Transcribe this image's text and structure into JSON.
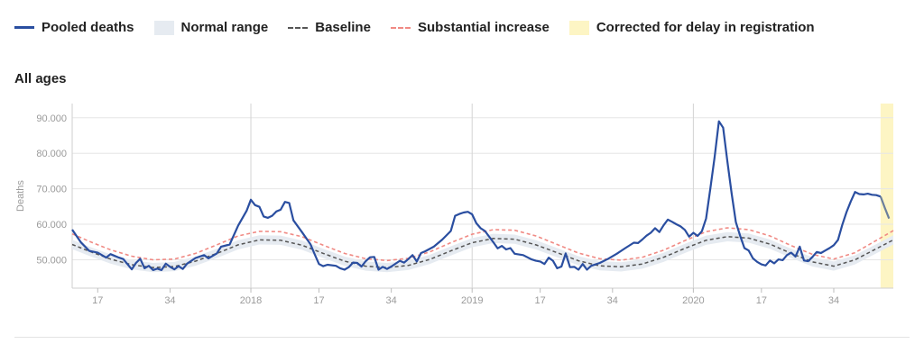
{
  "legend": {
    "pooled": "Pooled deaths",
    "normal": "Normal range",
    "baseline": "Baseline",
    "substantial": "Substantial increase",
    "corrected": "Corrected for delay in registration"
  },
  "subtitle": "All ages",
  "colors": {
    "pooled": "#2a4ea0",
    "normal_band": "#e6ebf1",
    "baseline": "#555555",
    "substantial": "#f08a84",
    "corrected": "#fdf5c4",
    "grid": "#e6e6e6"
  },
  "chart_data": {
    "type": "line",
    "ylabel": "Deaths",
    "ylim": [
      42000,
      94000
    ],
    "yticks": [
      50000,
      60000,
      70000,
      80000,
      90000
    ],
    "ytick_labels": [
      "50.000",
      "60.000",
      "70.000",
      "80.000",
      "90.000"
    ],
    "x_axis": "ISO week, 2017 week 11 to 2020 week 47",
    "xlim": [
      11,
      204
    ],
    "xticks": [
      {
        "x": 17,
        "label": "17"
      },
      {
        "x": 34,
        "label": "34"
      },
      {
        "x": 53,
        "label": "2018"
      },
      {
        "x": 69,
        "label": "17"
      },
      {
        "x": 86,
        "label": "34"
      },
      {
        "x": 105,
        "label": "2019"
      },
      {
        "x": 121,
        "label": "17"
      },
      {
        "x": 138,
        "label": "34"
      },
      {
        "x": 157,
        "label": "2020"
      },
      {
        "x": 173,
        "label": "17"
      },
      {
        "x": 190,
        "label": "34"
      }
    ],
    "year_lines": [
      53,
      105,
      157
    ],
    "corrected_range": [
      201,
      204
    ],
    "series": [
      {
        "key": "pooled",
        "points": [
          [
            11,
            58500
          ],
          [
            13,
            55000
          ],
          [
            15,
            52500
          ],
          [
            17,
            52000
          ],
          [
            19,
            50600
          ],
          [
            20,
            51600
          ],
          [
            22,
            50600
          ],
          [
            23,
            50200
          ],
          [
            25,
            47300
          ],
          [
            26,
            49100
          ],
          [
            27,
            50300
          ],
          [
            28,
            47600
          ],
          [
            29,
            48300
          ],
          [
            30,
            47100
          ],
          [
            31,
            47500
          ],
          [
            32,
            47100
          ],
          [
            33,
            48900
          ],
          [
            34,
            48000
          ],
          [
            35,
            47300
          ],
          [
            36,
            48200
          ],
          [
            37,
            47400
          ],
          [
            38,
            48900
          ],
          [
            40,
            50500
          ],
          [
            42,
            51300
          ],
          [
            43,
            50400
          ],
          [
            45,
            51800
          ],
          [
            46,
            53700
          ],
          [
            48,
            54300
          ],
          [
            50,
            59600
          ],
          [
            52,
            63800
          ],
          [
            53,
            66900
          ],
          [
            54,
            65400
          ],
          [
            55,
            64900
          ],
          [
            56,
            62200
          ],
          [
            57,
            61800
          ],
          [
            58,
            62400
          ],
          [
            59,
            63600
          ],
          [
            60,
            64100
          ],
          [
            61,
            66300
          ],
          [
            62,
            66000
          ],
          [
            63,
            61100
          ],
          [
            65,
            57800
          ],
          [
            67,
            54400
          ],
          [
            68,
            51500
          ],
          [
            69,
            48800
          ],
          [
            70,
            48200
          ],
          [
            71,
            48600
          ],
          [
            73,
            48300
          ],
          [
            74,
            47600
          ],
          [
            75,
            47200
          ],
          [
            76,
            47900
          ],
          [
            77,
            49200
          ],
          [
            78,
            49100
          ],
          [
            79,
            48100
          ],
          [
            80,
            49600
          ],
          [
            81,
            50700
          ],
          [
            82,
            50800
          ],
          [
            83,
            47200
          ],
          [
            84,
            48000
          ],
          [
            85,
            47400
          ],
          [
            86,
            48100
          ],
          [
            88,
            49700
          ],
          [
            89,
            49200
          ],
          [
            90,
            50200
          ],
          [
            91,
            51300
          ],
          [
            92,
            49500
          ],
          [
            93,
            51900
          ],
          [
            94,
            52400
          ],
          [
            96,
            53700
          ],
          [
            98,
            55700
          ],
          [
            100,
            58100
          ],
          [
            101,
            62400
          ],
          [
            102,
            62900
          ],
          [
            103,
            63300
          ],
          [
            104,
            63500
          ],
          [
            105,
            62800
          ],
          [
            106,
            60300
          ],
          [
            107,
            58900
          ],
          [
            108,
            58100
          ],
          [
            110,
            54900
          ],
          [
            111,
            53200
          ],
          [
            112,
            53900
          ],
          [
            113,
            52900
          ],
          [
            114,
            53300
          ],
          [
            115,
            51700
          ],
          [
            117,
            51300
          ],
          [
            119,
            50100
          ],
          [
            120,
            49700
          ],
          [
            121,
            49500
          ],
          [
            122,
            48800
          ],
          [
            123,
            50600
          ],
          [
            124,
            49700
          ],
          [
            125,
            47600
          ],
          [
            126,
            48100
          ],
          [
            127,
            51800
          ],
          [
            128,
            47900
          ],
          [
            129,
            48000
          ],
          [
            130,
            47200
          ],
          [
            131,
            48800
          ],
          [
            132,
            47200
          ],
          [
            133,
            48300
          ],
          [
            135,
            49100
          ],
          [
            137,
            50300
          ],
          [
            139,
            51700
          ],
          [
            141,
            53300
          ],
          [
            143,
            54800
          ],
          [
            144,
            54700
          ],
          [
            145,
            55700
          ],
          [
            146,
            56800
          ],
          [
            147,
            57600
          ],
          [
            148,
            58900
          ],
          [
            149,
            57800
          ],
          [
            150,
            59700
          ],
          [
            151,
            61300
          ],
          [
            152,
            60700
          ],
          [
            153,
            60000
          ],
          [
            154,
            59400
          ],
          [
            155,
            58400
          ],
          [
            156,
            56500
          ],
          [
            157,
            57600
          ],
          [
            158,
            56700
          ],
          [
            159,
            58000
          ],
          [
            160,
            61600
          ],
          [
            161,
            70200
          ],
          [
            162,
            79000
          ],
          [
            163,
            89000
          ],
          [
            164,
            87200
          ],
          [
            165,
            77700
          ],
          [
            166,
            68700
          ],
          [
            167,
            60600
          ],
          [
            168,
            56700
          ],
          [
            169,
            53300
          ],
          [
            170,
            52600
          ],
          [
            171,
            50400
          ],
          [
            172,
            49400
          ],
          [
            173,
            48700
          ],
          [
            174,
            48400
          ],
          [
            175,
            49800
          ],
          [
            176,
            49000
          ],
          [
            177,
            50100
          ],
          [
            178,
            49900
          ],
          [
            179,
            51300
          ],
          [
            180,
            52000
          ],
          [
            181,
            50900
          ],
          [
            182,
            53700
          ],
          [
            183,
            49800
          ],
          [
            184,
            49600
          ],
          [
            185,
            50800
          ],
          [
            186,
            52200
          ],
          [
            187,
            51900
          ],
          [
            188,
            52600
          ],
          [
            189,
            53300
          ],
          [
            190,
            54100
          ],
          [
            191,
            55600
          ],
          [
            192,
            59800
          ],
          [
            193,
            63400
          ],
          [
            194,
            66400
          ],
          [
            195,
            69100
          ],
          [
            196,
            68500
          ],
          [
            197,
            68400
          ],
          [
            198,
            68600
          ],
          [
            199,
            68300
          ],
          [
            200,
            68200
          ],
          [
            201,
            67800
          ],
          [
            202,
            64600
          ],
          [
            203,
            61600
          ]
        ]
      },
      {
        "key": "baseline",
        "points": [
          [
            11,
            54300
          ],
          [
            15,
            52400
          ],
          [
            20,
            50200
          ],
          [
            25,
            48600
          ],
          [
            30,
            47800
          ],
          [
            35,
            48100
          ],
          [
            40,
            49600
          ],
          [
            45,
            51800
          ],
          [
            50,
            54200
          ],
          [
            55,
            55600
          ],
          [
            60,
            55500
          ],
          [
            65,
            54100
          ],
          [
            70,
            51800
          ],
          [
            75,
            49600
          ],
          [
            80,
            48200
          ],
          [
            85,
            47800
          ],
          [
            90,
            48400
          ],
          [
            95,
            50100
          ],
          [
            100,
            52500
          ],
          [
            105,
            54800
          ],
          [
            110,
            56000
          ],
          [
            115,
            55800
          ],
          [
            120,
            54200
          ],
          [
            125,
            52000
          ],
          [
            130,
            49700
          ],
          [
            135,
            48300
          ],
          [
            140,
            48000
          ],
          [
            145,
            48800
          ],
          [
            150,
            50700
          ],
          [
            155,
            53200
          ],
          [
            160,
            55500
          ],
          [
            165,
            56500
          ],
          [
            170,
            56100
          ],
          [
            175,
            54400
          ],
          [
            180,
            51800
          ],
          [
            185,
            49400
          ],
          [
            190,
            48200
          ],
          [
            195,
            50000
          ],
          [
            204,
            55600
          ]
        ]
      },
      {
        "key": "substantial",
        "points": [
          [
            11,
            57300
          ],
          [
            15,
            55200
          ],
          [
            20,
            52800
          ],
          [
            25,
            51000
          ],
          [
            30,
            50000
          ],
          [
            35,
            50200
          ],
          [
            40,
            51800
          ],
          [
            45,
            54200
          ],
          [
            50,
            56700
          ],
          [
            55,
            58000
          ],
          [
            60,
            57900
          ],
          [
            65,
            56500
          ],
          [
            70,
            54100
          ],
          [
            75,
            51800
          ],
          [
            80,
            50300
          ],
          [
            85,
            49800
          ],
          [
            90,
            50400
          ],
          [
            95,
            52200
          ],
          [
            100,
            54800
          ],
          [
            105,
            57200
          ],
          [
            110,
            58500
          ],
          [
            115,
            58300
          ],
          [
            120,
            56700
          ],
          [
            125,
            54300
          ],
          [
            130,
            51900
          ],
          [
            135,
            50300
          ],
          [
            140,
            49900
          ],
          [
            145,
            50700
          ],
          [
            150,
            52700
          ],
          [
            155,
            55400
          ],
          [
            160,
            57900
          ],
          [
            165,
            59000
          ],
          [
            170,
            58500
          ],
          [
            175,
            56700
          ],
          [
            180,
            54000
          ],
          [
            185,
            51500
          ],
          [
            190,
            50200
          ],
          [
            195,
            52000
          ],
          [
            204,
            58200
          ]
        ]
      }
    ],
    "normal_range_halfwidth": 1300
  }
}
